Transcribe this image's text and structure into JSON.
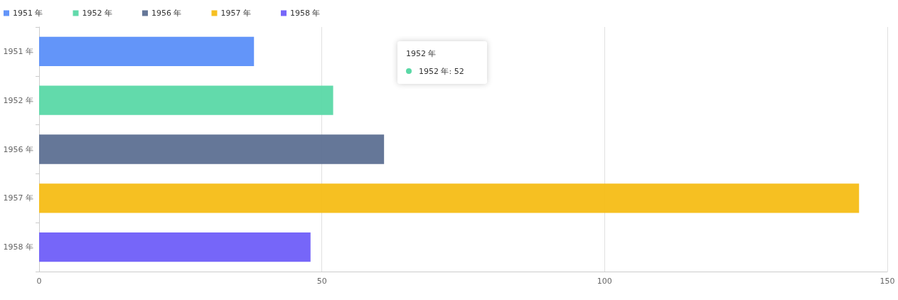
{
  "chart_data": {
    "type": "bar",
    "orientation": "horizontal",
    "categories": [
      "1951 年",
      "1952 年",
      "1956 年",
      "1957 年",
      "1958 年"
    ],
    "series": [
      {
        "name": "1951 年",
        "color": "#5b8ff9",
        "values": [
          38,
          null,
          null,
          null,
          null
        ]
      },
      {
        "name": "1952 年",
        "color": "#5ad8a6",
        "values": [
          null,
          52,
          null,
          null,
          null
        ]
      },
      {
        "name": "1956 年",
        "color": "#5d7092",
        "values": [
          null,
          null,
          61,
          null,
          null
        ]
      },
      {
        "name": "1957 年",
        "color": "#f6bd16",
        "values": [
          null,
          null,
          null,
          145,
          null
        ]
      },
      {
        "name": "1958 年",
        "color": "#6f5ef9",
        "values": [
          null,
          null,
          null,
          null,
          48
        ]
      }
    ],
    "xlim": [
      0,
      150
    ],
    "xticks": [
      0,
      50,
      100,
      150
    ],
    "grid": "x",
    "legend": "top left",
    "annotations": [
      "1952 年",
      "1952 年: 52"
    ]
  }
}
